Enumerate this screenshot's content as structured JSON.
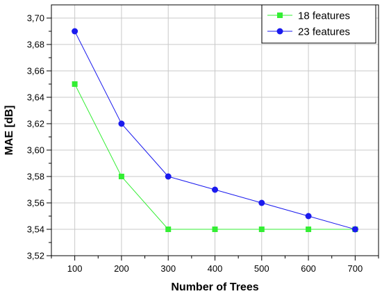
{
  "chart_data": {
    "type": "line",
    "title": "",
    "xlabel": "Number of Trees",
    "ylabel": "MAE [dB]",
    "x": [
      100,
      200,
      300,
      400,
      500,
      600,
      700
    ],
    "xlim": [
      50,
      750
    ],
    "ylim": [
      3.52,
      3.71
    ],
    "x_ticks": [
      {
        "value": 100,
        "label": "100"
      },
      {
        "value": 200,
        "label": "200"
      },
      {
        "value": 300,
        "label": "300"
      },
      {
        "value": 400,
        "label": "400"
      },
      {
        "value": 500,
        "label": "500"
      },
      {
        "value": 600,
        "label": "600"
      },
      {
        "value": 700,
        "label": "700"
      }
    ],
    "y_ticks": [
      {
        "value": 3.52,
        "label": "3,52"
      },
      {
        "value": 3.54,
        "label": "3,54"
      },
      {
        "value": 3.56,
        "label": "3,56"
      },
      {
        "value": 3.58,
        "label": "3,58"
      },
      {
        "value": 3.6,
        "label": "3,60"
      },
      {
        "value": 3.62,
        "label": "3,62"
      },
      {
        "value": 3.64,
        "label": "3,64"
      },
      {
        "value": 3.66,
        "label": "3,66"
      },
      {
        "value": 3.68,
        "label": "3,68"
      },
      {
        "value": 3.7,
        "label": "3,70"
      }
    ],
    "grid": true,
    "legend_position": "top-right",
    "series": [
      {
        "name": "18 features",
        "color": "#33ee33",
        "marker": "square",
        "values": [
          3.65,
          3.58,
          3.54,
          3.54,
          3.54,
          3.54,
          3.54
        ]
      },
      {
        "name": "23 features",
        "color": "#1a1aee",
        "marker": "circle",
        "values": [
          3.69,
          3.62,
          3.58,
          3.57,
          3.56,
          3.55,
          3.54
        ]
      }
    ]
  }
}
